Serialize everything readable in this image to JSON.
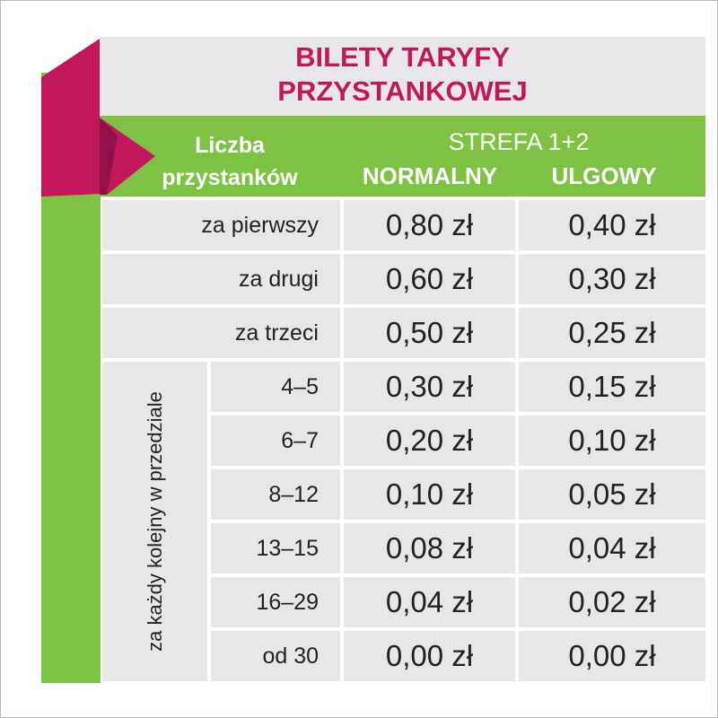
{
  "header": {
    "title": [
      "BILETY TARYFY",
      "PRZYSTANKOWEJ"
    ]
  },
  "table": {
    "headers": {
      "stops": [
        "Liczba",
        "przystanków"
      ],
      "zone": "STREFA 1+2",
      "normal": "NORMALNY",
      "reduced": "ULGOWY"
    },
    "group_label": "za każdy kolejny w przedziale",
    "rows": [
      [
        "za pierwszy",
        "0,80 zł",
        "0,40 zł"
      ],
      [
        "za drugi",
        "0,60 zł",
        "0,30 zł"
      ],
      [
        "za trzeci",
        "0,50 zł",
        "0,25 zł"
      ],
      [
        "4–5",
        "0,30 zł",
        "0,15 zł"
      ],
      [
        "6–7",
        "0,20 zł",
        "0,10 zł"
      ],
      [
        "8–12",
        "0,10 zł",
        "0,05 zł"
      ],
      [
        "13–15",
        "0,08 zł",
        "0,04 zł"
      ],
      [
        "16–29",
        "0,04 zł",
        "0,02 zł"
      ],
      [
        "od 30",
        "0,00 zł",
        "0,00 zł"
      ]
    ]
  }
}
